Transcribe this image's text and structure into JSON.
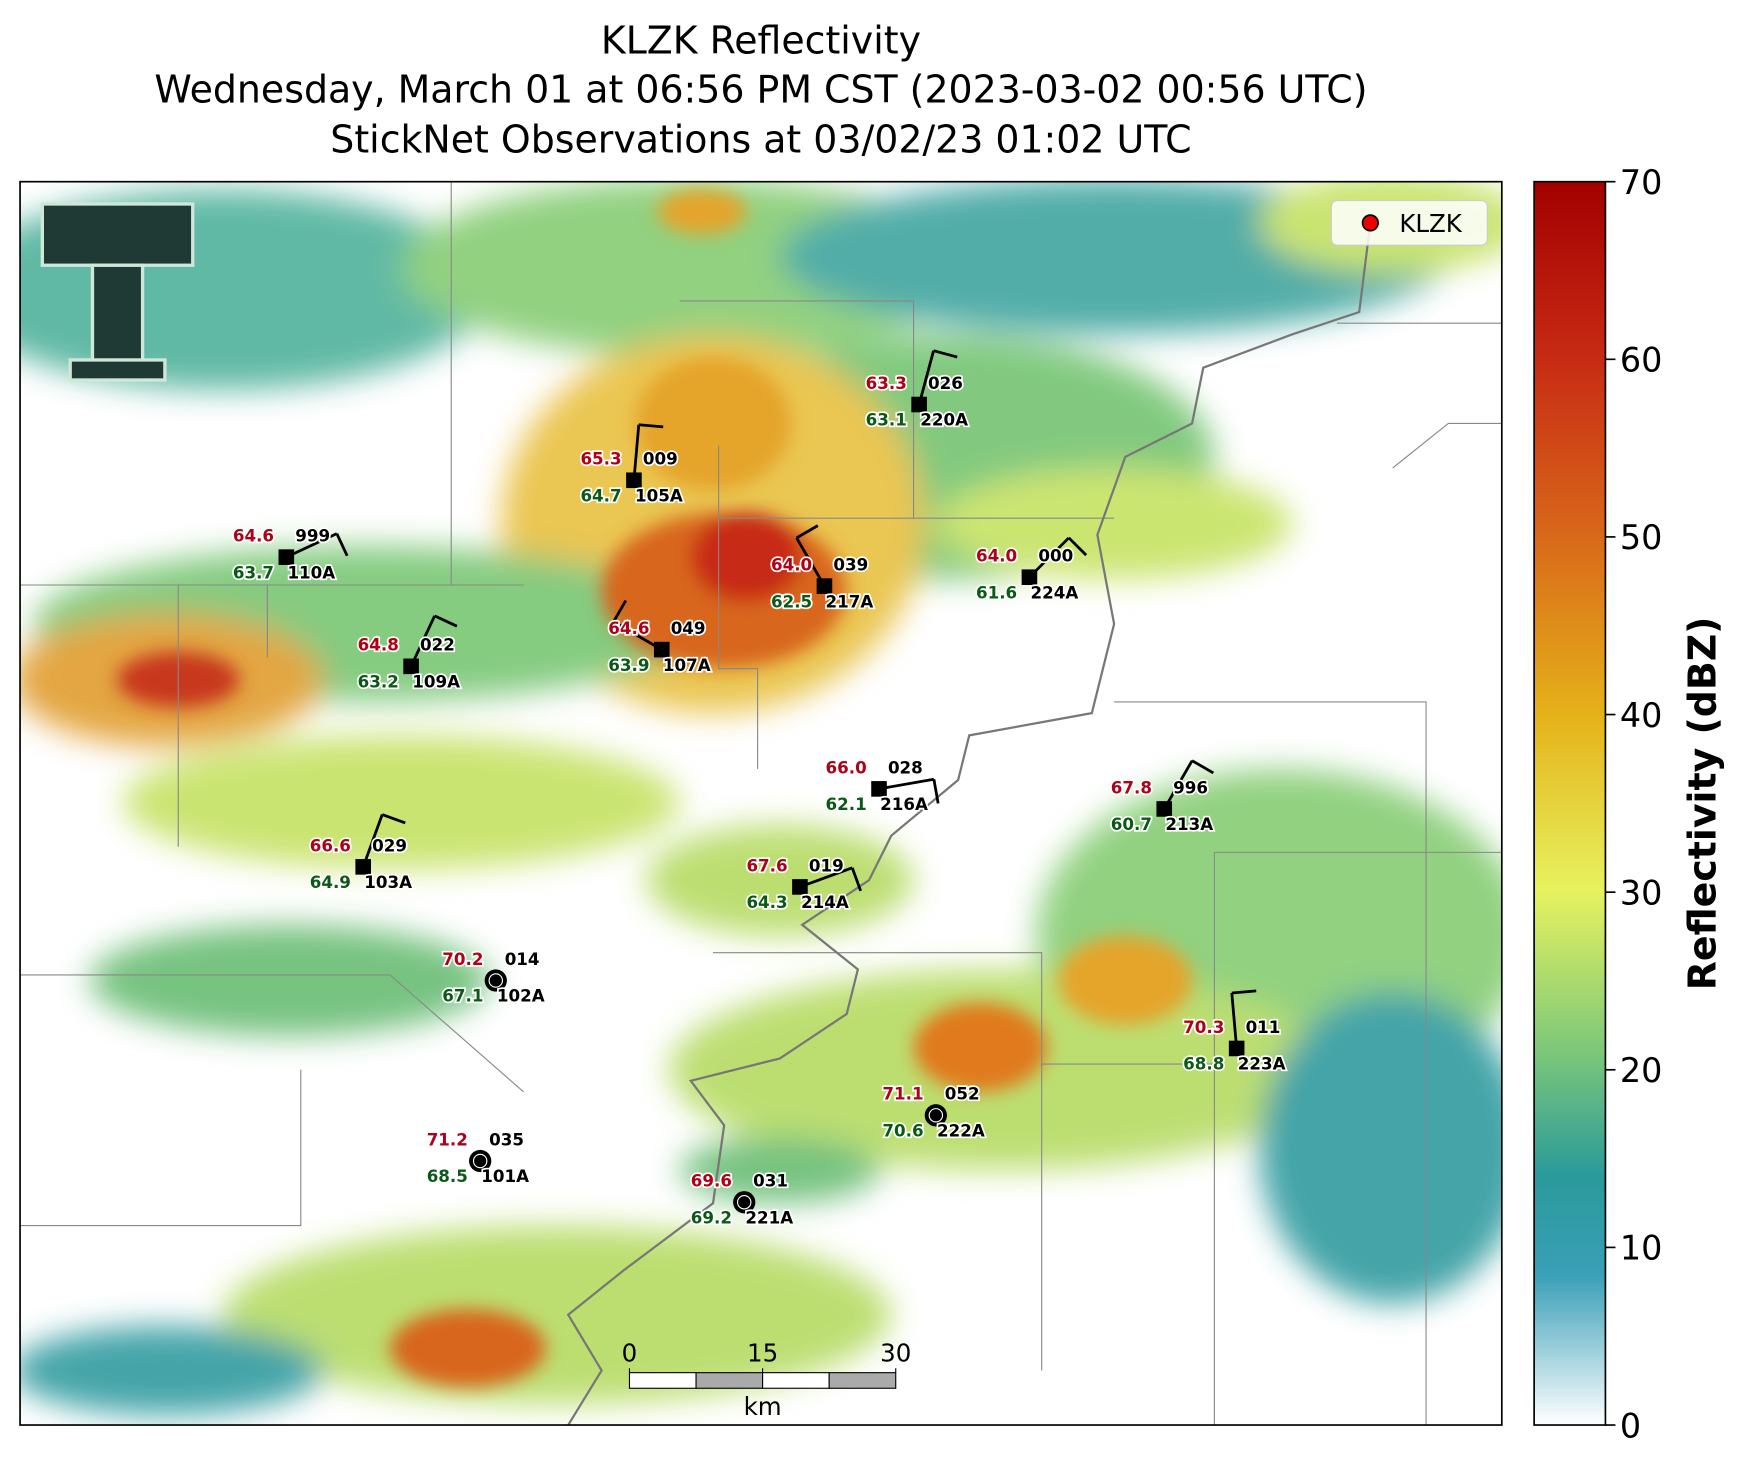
{
  "title": [
    "KLZK Reflectivity",
    "Wednesday, March 01 at 06:56 PM CST (2023-03-02 00:56 UTC)",
    "StickNet Observations at 03/02/23 01:02 UTC"
  ],
  "legend": "KLZK",
  "colorbar": {
    "label": "Reflectivity (dBZ)",
    "lim": [
      0,
      70
    ],
    "ticks": [
      0,
      10,
      20,
      30,
      40,
      50,
      60,
      70
    ]
  },
  "scale_bar": {
    "ticks": [
      0,
      15,
      30
    ],
    "unit": "km"
  },
  "stations": [
    {
      "id": "110A",
      "pressure": "999",
      "temperature": "64.6",
      "dewpoint": "63.7"
    },
    {
      "id": "105A",
      "pressure": "009",
      "temperature": "65.3",
      "dewpoint": "64.7"
    },
    {
      "id": "220A",
      "pressure": "026",
      "temperature": "63.3",
      "dewpoint": "63.1"
    },
    {
      "id": "217A",
      "pressure": "039",
      "temperature": "64.0",
      "dewpoint": "62.5"
    },
    {
      "id": "224A",
      "pressure": "000",
      "temperature": "64.0",
      "dewpoint": "61.6"
    },
    {
      "id": "109A",
      "pressure": "022",
      "temperature": "64.8",
      "dewpoint": "63.2"
    },
    {
      "id": "107A",
      "pressure": "049",
      "temperature": "64.6",
      "dewpoint": "63.9"
    },
    {
      "id": "216A",
      "pressure": "028",
      "temperature": "66.0",
      "dewpoint": "62.1"
    },
    {
      "id": "213A",
      "pressure": "996",
      "temperature": "67.8",
      "dewpoint": "60.7"
    },
    {
      "id": "103A",
      "pressure": "029",
      "temperature": "66.6",
      "dewpoint": "64.9"
    },
    {
      "id": "214A",
      "pressure": "019",
      "temperature": "67.6",
      "dewpoint": "64.3"
    },
    {
      "id": "102A",
      "pressure": "014",
      "temperature": "70.2",
      "dewpoint": "67.1"
    },
    {
      "id": "223A",
      "pressure": "011",
      "temperature": "70.3",
      "dewpoint": "68.8"
    },
    {
      "id": "222A",
      "pressure": "052",
      "temperature": "71.1",
      "dewpoint": "70.6"
    },
    {
      "id": "101A",
      "pressure": "035",
      "temperature": "71.2",
      "dewpoint": "68.5"
    },
    {
      "id": "221A",
      "pressure": "031",
      "temperature": "69.6",
      "dewpoint": "69.2"
    }
  ]
}
